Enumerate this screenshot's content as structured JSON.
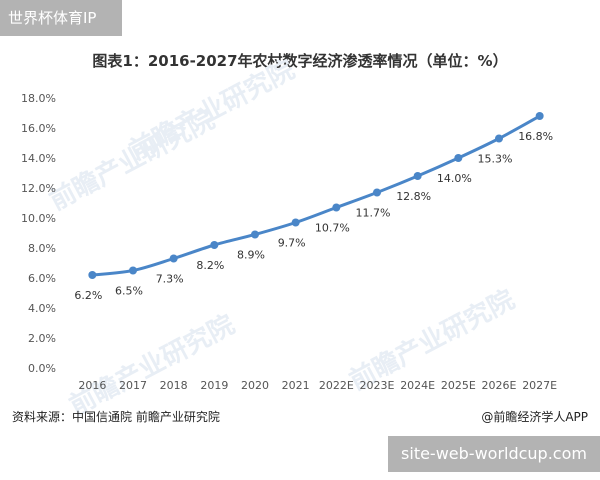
{
  "badge": {
    "text": "世界杯体育IP"
  },
  "site_badge": {
    "text": "site-web-worldcup.com"
  },
  "watermark": {
    "text": "前瞻产业研究院"
  },
  "footer": {
    "source": "资料来源：中国信通院  前瞻产业研究院",
    "app": "@前瞻经济学人APP"
  },
  "colors": {
    "line": "#4a86c8",
    "point": "#4a86c8",
    "axis_text": "#555555",
    "grid": "#e6e6e6"
  },
  "chart_data": {
    "type": "line",
    "title": "图表1：2016-2027年农村数字经济渗透率情况（单位：%）",
    "categories": [
      "2016",
      "2017",
      "2018",
      "2019",
      "2020",
      "2021",
      "2022E",
      "2023E",
      "2024E",
      "2025E",
      "2026E",
      "2027E"
    ],
    "values": [
      6.2,
      6.5,
      7.3,
      8.2,
      8.9,
      9.7,
      10.7,
      11.7,
      12.8,
      14.0,
      15.3,
      16.8
    ],
    "data_labels": [
      "6.2%",
      "6.5%",
      "7.3%",
      "8.2%",
      "8.9%",
      "9.7%",
      "10.7%",
      "11.7%",
      "12.8%",
      "14.0%",
      "15.3%",
      "16.8%"
    ],
    "y_ticks": [
      "0.0%",
      "2.0%",
      "4.0%",
      "6.0%",
      "8.0%",
      "10.0%",
      "12.0%",
      "14.0%",
      "16.0%",
      "18.0%"
    ],
    "ylim": [
      0,
      18
    ],
    "grid": false,
    "legend": "none"
  }
}
